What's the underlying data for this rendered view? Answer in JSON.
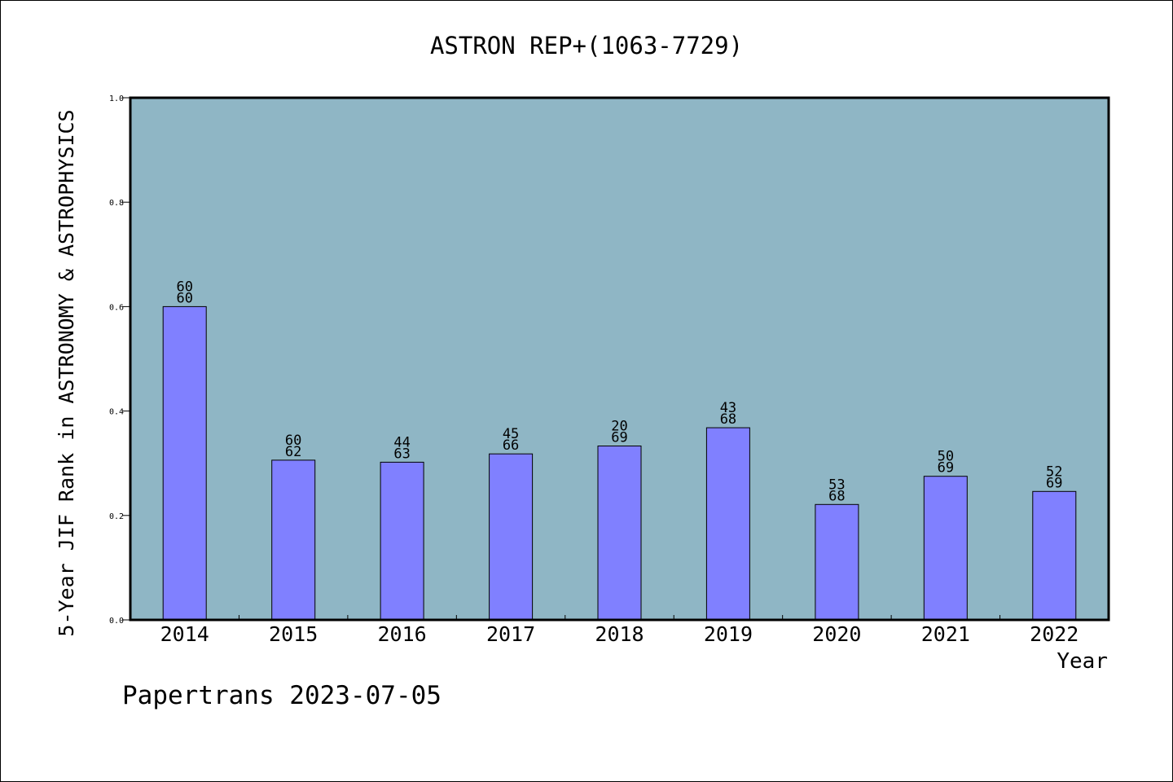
{
  "chart_data": {
    "type": "bar",
    "title": "ASTRON REP+(1063-7729)",
    "xlabel": "Year",
    "ylabel": "5-Year JIF Rank in ASTRONOMY & ASTROPHYSICS",
    "ylim": [
      0,
      1.0
    ],
    "yticks": [
      "0.0",
      "0.2",
      "0.4",
      "0.6",
      "0.8",
      "1.0"
    ],
    "categories": [
      "2014",
      "2015",
      "2016",
      "2017",
      "2018",
      "2019",
      "2020",
      "2021",
      "2022"
    ],
    "values": [
      0.6,
      0.306,
      0.302,
      0.318,
      0.333,
      0.368,
      0.221,
      0.275,
      0.246
    ],
    "labels_top": [
      "60",
      "60",
      "44",
      "45",
      "20",
      "43",
      "53",
      "50",
      "52"
    ],
    "labels_bottom": [
      "60",
      "62",
      "63",
      "66",
      "69",
      "68",
      "68",
      "69",
      "69"
    ],
    "grid": false,
    "plot_background": "#8fb6c5",
    "bar_color": "#8080ff"
  },
  "footer": "Papertrans 2023-07-05"
}
